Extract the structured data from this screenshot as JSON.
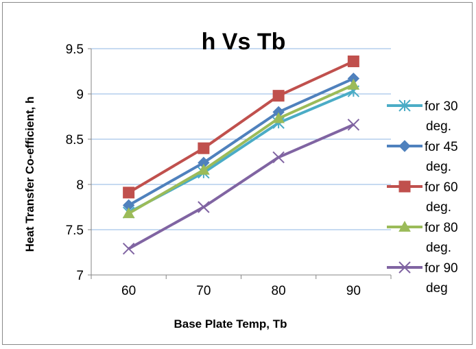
{
  "chart_data": {
    "type": "line",
    "title": "h Vs Tb",
    "xlabel": "Base Plate Temp, Tb",
    "ylabel": "Heat Transfer Co-efficient, h",
    "categories": [
      "60",
      "70",
      "80",
      "90"
    ],
    "x": [
      60,
      70,
      80,
      90
    ],
    "ylim": [
      7,
      9.5
    ],
    "yticks": [
      "7",
      "7.5",
      "8",
      "8.5",
      "9",
      "9.5"
    ],
    "grid": true,
    "legend_position": "right",
    "series": [
      {
        "name": "for 30 deg.",
        "values": [
          7.69,
          8.13,
          8.68,
          9.03
        ],
        "color": "#4BACC6",
        "marker": "asterisk"
      },
      {
        "name": "for 45 deg.",
        "values": [
          7.77,
          8.24,
          8.8,
          9.17
        ],
        "color": "#4F81BD",
        "marker": "diamond"
      },
      {
        "name": "for 60 deg.",
        "values": [
          7.91,
          8.4,
          8.98,
          9.36
        ],
        "color": "#C0504D",
        "marker": "square"
      },
      {
        "name": "for 80 deg.",
        "values": [
          7.68,
          8.16,
          8.73,
          9.1
        ],
        "color": "#9BBB59",
        "marker": "triangle"
      },
      {
        "name": "for 90 deg",
        "values": [
          7.29,
          7.75,
          8.3,
          8.66
        ],
        "color": "#8064A2",
        "marker": "x"
      }
    ]
  }
}
